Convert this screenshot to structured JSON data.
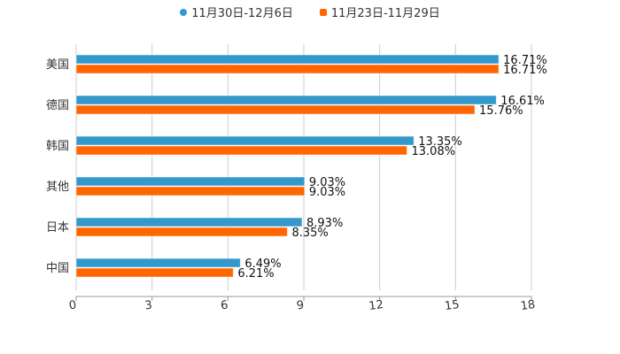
{
  "chart_data": {
    "type": "bar",
    "orientation": "horizontal",
    "categories": [
      "美国",
      "德国",
      "韩国",
      "其他",
      "日本",
      "中国"
    ],
    "series": [
      {
        "name": "11月30日-12月6日",
        "color": "#3399cc",
        "values": [
          16.71,
          16.61,
          13.35,
          9.03,
          8.93,
          6.49
        ],
        "labels": [
          "16.71%",
          "16.61%",
          "13.35%",
          "9.03%",
          "8.93%",
          "6.49%"
        ]
      },
      {
        "name": "11月23日-11月29日",
        "color": "#ff6600",
        "values": [
          16.71,
          15.76,
          13.08,
          9.03,
          8.35,
          6.21
        ],
        "labels": [
          "16.71%",
          "15.76%",
          "13.08%",
          "9.03%",
          "8.35%",
          "6.21%"
        ]
      }
    ],
    "xlim": [
      0,
      18
    ],
    "xticks": [
      "0",
      "3",
      "6",
      "9",
      "12",
      "15",
      "18"
    ],
    "grid": true,
    "legend": "top-center"
  }
}
